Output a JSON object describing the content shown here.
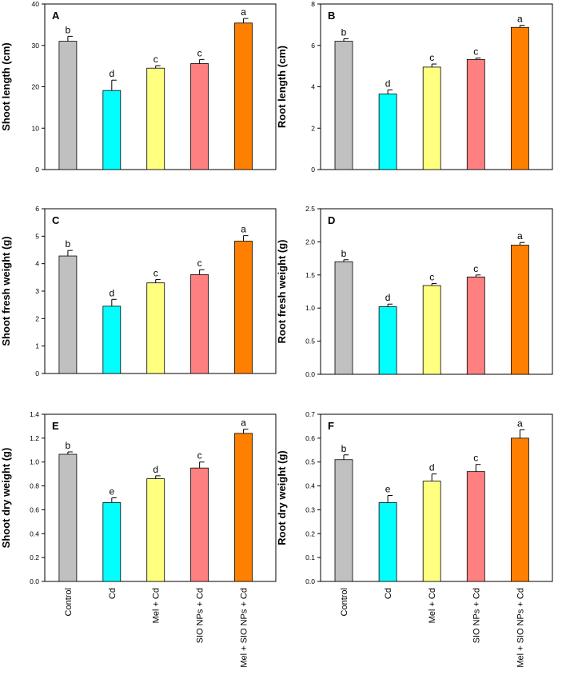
{
  "categories": [
    "Control",
    "Cd",
    "Mel + Cd",
    "SIO NPs + Cd",
    "Mel + SIO NPs + Cd"
  ],
  "colors": {
    "bars": [
      "#c0c0c0",
      "#00ffff",
      "#ffff80",
      "#ff8080",
      "#ff8000"
    ],
    "axis": "#000000",
    "error": "#000000"
  },
  "chart_data": [
    {
      "type": "bar",
      "panel_label": "A",
      "title": "",
      "ylabel": "Shoot length (cm)",
      "ylim": [
        0,
        40
      ],
      "yticks": [
        "0",
        "10",
        "20",
        "30",
        "40"
      ],
      "values": [
        31.0,
        19.1,
        24.5,
        25.6,
        35.4
      ],
      "errors": [
        1.2,
        2.5,
        0.6,
        1.0,
        1.1
      ],
      "letters": [
        "b",
        "d",
        "c",
        "c",
        "a"
      ]
    },
    {
      "type": "bar",
      "panel_label": "B",
      "title": "",
      "ylabel": "Root length (cm)",
      "ylim": [
        0,
        8
      ],
      "yticks": [
        "0",
        "2",
        "4",
        "6",
        "8"
      ],
      "values": [
        6.2,
        3.65,
        4.95,
        5.32,
        6.87
      ],
      "errors": [
        0.12,
        0.2,
        0.15,
        0.07,
        0.1
      ],
      "letters": [
        "b",
        "d",
        "c",
        "c",
        "a"
      ]
    },
    {
      "type": "bar",
      "panel_label": "C",
      "title": "",
      "ylabel": "Shoot fresh weight (g)",
      "ylim": [
        0,
        6
      ],
      "yticks": [
        "0",
        "1",
        "2",
        "3",
        "4",
        "5",
        "6"
      ],
      "values": [
        4.28,
        2.45,
        3.3,
        3.6,
        4.82
      ],
      "errors": [
        0.2,
        0.25,
        0.12,
        0.18,
        0.2
      ],
      "letters": [
        "b",
        "d",
        "c",
        "c",
        "a"
      ]
    },
    {
      "type": "bar",
      "panel_label": "D",
      "title": "",
      "ylabel": "Root fresh weight (g)",
      "ylim": [
        0,
        2.5
      ],
      "yticks": [
        "0.0",
        "0.5",
        "1.0",
        "1.5",
        "2.0",
        "2.5"
      ],
      "values": [
        1.7,
        1.02,
        1.34,
        1.47,
        1.95
      ],
      "errors": [
        0.03,
        0.04,
        0.03,
        0.03,
        0.04
      ],
      "letters": [
        "b",
        "d",
        "c",
        "c",
        "a"
      ]
    },
    {
      "type": "bar",
      "panel_label": "E",
      "title": "",
      "ylabel": "Shoot dry weight (g)",
      "ylim": [
        0,
        1.4
      ],
      "yticks": [
        "0.0",
        "0.2",
        "0.4",
        "0.6",
        "0.8",
        "1.0",
        "1.2",
        "1.4"
      ],
      "values": [
        1.065,
        0.66,
        0.86,
        0.95,
        1.24
      ],
      "errors": [
        0.02,
        0.04,
        0.025,
        0.05,
        0.035
      ],
      "letters": [
        "b",
        "e",
        "d",
        "c",
        "a"
      ]
    },
    {
      "type": "bar",
      "panel_label": "F",
      "title": "",
      "ylabel": "Root dry weight (g)",
      "ylim": [
        0,
        0.7
      ],
      "yticks": [
        "0.0",
        "0.1",
        "0.2",
        "0.3",
        "0.4",
        "0.5",
        "0.6",
        "0.7"
      ],
      "values": [
        0.51,
        0.33,
        0.42,
        0.46,
        0.6
      ],
      "errors": [
        0.02,
        0.03,
        0.03,
        0.03,
        0.035
      ],
      "letters": [
        "b",
        "e",
        "d",
        "c",
        "a"
      ]
    }
  ]
}
